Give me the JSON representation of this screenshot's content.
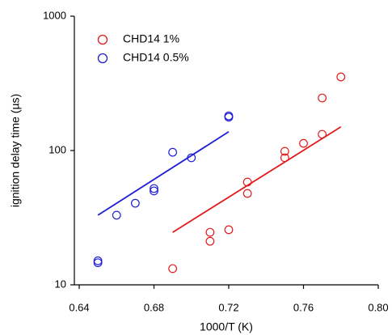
{
  "chart_data": {
    "type": "scatter",
    "x_label": "1000/T (K)",
    "y_label": "ignition delay time (µs)",
    "xlim": [
      0.6374,
      0.8
    ],
    "xticks": [
      {
        "value": 0.64,
        "label": "0.64"
      },
      {
        "value": 0.68,
        "label": "0.68"
      },
      {
        "value": 0.72,
        "label": "0.72"
      },
      {
        "value": 0.76,
        "label": "0.76"
      },
      {
        "value": 0.8,
        "label": "0.80"
      }
    ],
    "ylim": [
      10,
      1000
    ],
    "yticks": [
      10,
      100,
      1000
    ],
    "ylog": true,
    "legend": "top-left",
    "series": [
      {
        "name": "CHD14 1%",
        "color": "#e31a1c",
        "x": [
          0.69,
          0.71,
          0.71,
          0.72,
          0.73,
          0.73,
          0.75,
          0.75,
          0.76,
          0.77,
          0.77,
          0.78
        ],
        "values": [
          13.2,
          24.6,
          21.1,
          25.7,
          58.2,
          47.9,
          98.6,
          88.3,
          113,
          132,
          246,
          353
        ],
        "fit": {
          "x": [
            0.69,
            0.78
          ],
          "values": [
            24.6,
            150
          ]
        }
      },
      {
        "name": "CHD14 0.5%",
        "color": "#1f1fd6",
        "x": [
          0.65,
          0.65,
          0.66,
          0.67,
          0.68,
          0.68,
          0.69,
          0.7,
          0.72,
          0.72
        ],
        "values": [
          15.1,
          14.6,
          33,
          40.5,
          52.1,
          50,
          97,
          88.3,
          177,
          181
        ],
        "fit": {
          "x": [
            0.65,
            0.72
          ],
          "values": [
            33,
            138
          ]
        }
      }
    ]
  }
}
